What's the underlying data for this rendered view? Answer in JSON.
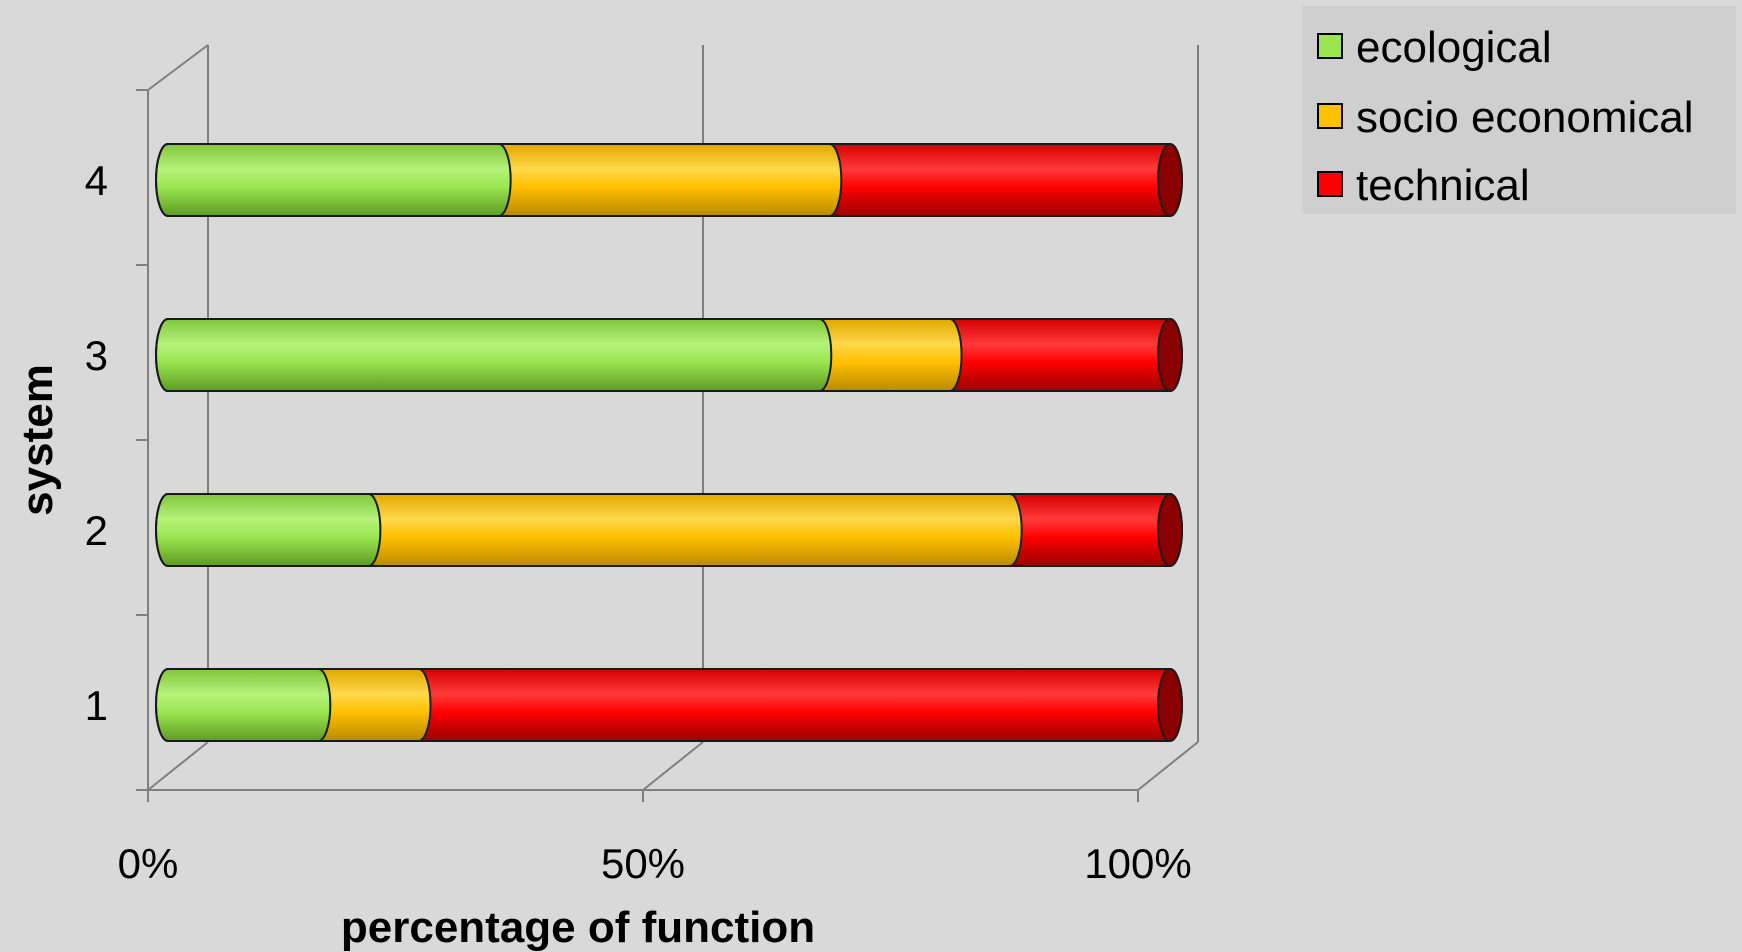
{
  "chart_data": {
    "type": "bar",
    "stacked": true,
    "percent": true,
    "orientation": "horizontal",
    "style": "3d-cylinder",
    "categories": [
      "1",
      "2",
      "3",
      "4"
    ],
    "series": [
      {
        "name": "ecological",
        "color": "#99e64f",
        "values": [
          15,
          20,
          65,
          33
        ]
      },
      {
        "name": "socio economical",
        "color": "#ffc000",
        "values": [
          10,
          64,
          13,
          33
        ]
      },
      {
        "name": "technical",
        "color": "#ff0000",
        "values": [
          75,
          16,
          22,
          34
        ]
      }
    ],
    "xlabel": "percentage of function",
    "ylabel": "system",
    "xticks": [
      "0%",
      "50%",
      "100%"
    ],
    "xlim": [
      0,
      100
    ],
    "grid": true,
    "legend": "top-right"
  }
}
